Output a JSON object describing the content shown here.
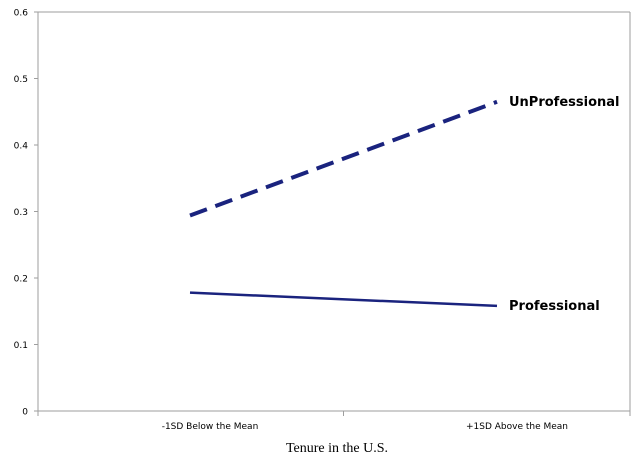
{
  "chart_data": {
    "type": "line",
    "title": "",
    "xlabel": "Tenure in the U.S.",
    "ylabel": "",
    "categories": [
      "-1SD Below the Mean",
      "+1SD Above the Mean"
    ],
    "ylim": [
      0,
      0.6
    ],
    "yticks": [
      "0",
      "0.1",
      "0.2",
      "0.3",
      "0.4",
      "0.5",
      "0.6"
    ],
    "grid": false,
    "series": [
      {
        "name": "UnProfessional",
        "values": [
          0.294,
          0.465
        ],
        "style": "dashed",
        "color": "#1a237e"
      },
      {
        "name": "Professional",
        "values": [
          0.178,
          0.158
        ],
        "style": "solid",
        "color": "#1a237e"
      }
    ]
  }
}
